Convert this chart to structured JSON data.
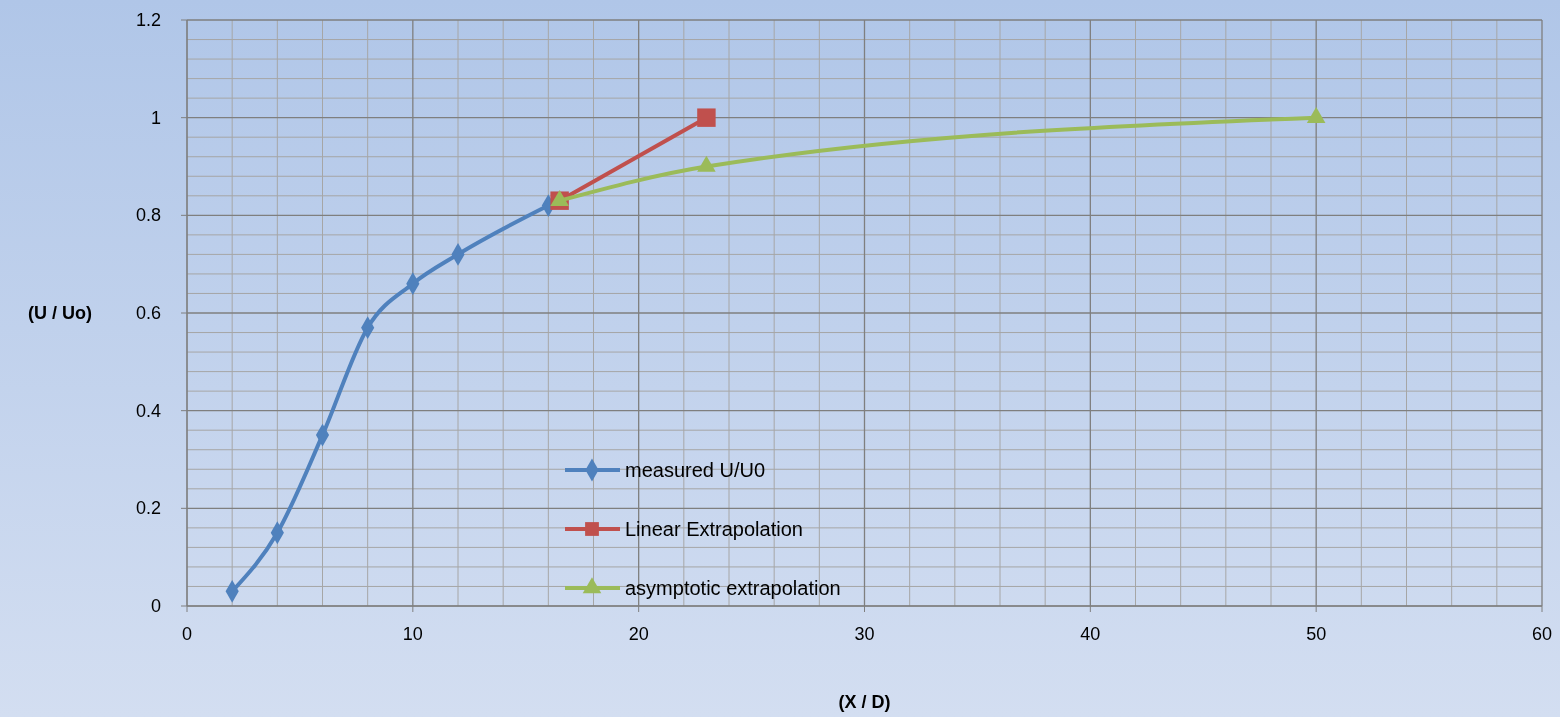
{
  "chart_data": {
    "type": "line",
    "xlabel": "(X / D)",
    "ylabel": "(U / Uo)",
    "xlim": [
      0,
      60
    ],
    "xticks": [
      0,
      10,
      20,
      30,
      40,
      50,
      60
    ],
    "ylim": [
      0,
      1.2
    ],
    "yticks": [
      0,
      0.2,
      0.4,
      0.6,
      0.8,
      1,
      1.2
    ],
    "grid": true,
    "legend": "bottom",
    "line_style": "solid",
    "series": [
      {
        "name": "measured U/U0",
        "color": "#4f81bd",
        "marker": "diamond",
        "x": [
          2,
          4,
          6,
          8,
          10,
          12,
          16
        ],
        "values": [
          0.03,
          0.15,
          0.35,
          0.57,
          0.66,
          0.72,
          0.82
        ]
      },
      {
        "name": "Linear Extrapolation",
        "color": "#c0504d",
        "marker": "square",
        "x": [
          16.5,
          23
        ],
        "values": [
          0.83,
          1
        ]
      },
      {
        "name": "asymptotic extrapolation",
        "color": "#9bbb59",
        "marker": "triangle",
        "x": [
          16.5,
          23,
          50
        ],
        "values": [
          0.83,
          0.9,
          1
        ]
      }
    ]
  }
}
